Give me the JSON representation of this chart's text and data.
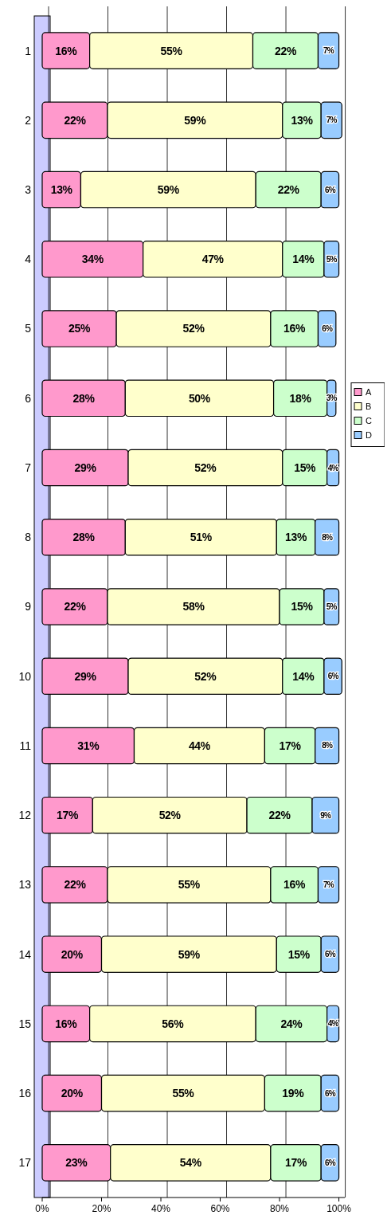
{
  "chart_data": {
    "type": "bar",
    "orientation": "horizontal",
    "stacked": true,
    "categories": [
      "1",
      "2",
      "3",
      "4",
      "5",
      "6",
      "7",
      "8",
      "9",
      "10",
      "11",
      "12",
      "13",
      "14",
      "15",
      "16",
      "17"
    ],
    "series": [
      {
        "name": "A",
        "color": "#ff99cc",
        "values": [
          16,
          22,
          13,
          34,
          25,
          28,
          29,
          28,
          22,
          29,
          31,
          17,
          22,
          20,
          16,
          20,
          23
        ],
        "value_labels": [
          "16%",
          "22%",
          "13%",
          "34%",
          "25%",
          "28%",
          "29%",
          "28%",
          "22%",
          "29%",
          "31%",
          "17%",
          "22%",
          "20%",
          "16%",
          "20%",
          "23%"
        ]
      },
      {
        "name": "B",
        "color": "#ffffcc",
        "values": [
          55,
          59,
          59,
          47,
          52,
          50,
          52,
          51,
          58,
          52,
          44,
          52,
          55,
          59,
          56,
          55,
          54
        ],
        "value_labels": [
          "55%",
          "59%",
          "59%",
          "47%",
          "52%",
          "50%",
          "52%",
          "51%",
          "58%",
          "52%",
          "44%",
          "52%",
          "55%",
          "59%",
          "56%",
          "55%",
          "54%"
        ]
      },
      {
        "name": "C",
        "color": "#ccffcc",
        "values": [
          22,
          13,
          22,
          14,
          16,
          18,
          15,
          13,
          15,
          14,
          17,
          22,
          16,
          15,
          24,
          19,
          17
        ],
        "value_labels": [
          "22%",
          "13%",
          "22%",
          "14%",
          "16%",
          "18%",
          "15%",
          "13%",
          "15%",
          "14%",
          "17%",
          "22%",
          "16%",
          "15%",
          "24%",
          "19%",
          "17%"
        ]
      },
      {
        "name": "D",
        "color": "#99ccff",
        "values": [
          7,
          7,
          6,
          5,
          6,
          3,
          4,
          8,
          5,
          6,
          8,
          9,
          7,
          6,
          4,
          6,
          6
        ],
        "value_labels": [
          "7%",
          "7%",
          "6%",
          "5%",
          "6%",
          "3%",
          "4%",
          "8%",
          "5%",
          "6%",
          "8%",
          "9%",
          "7%",
          "6%",
          "4%",
          "6%",
          "6%"
        ]
      }
    ],
    "xlim": [
      0,
      102
    ],
    "xticks": [
      {
        "value": 0,
        "label": "0%"
      },
      {
        "value": 20,
        "label": "20%"
      },
      {
        "value": 40,
        "label": "40%"
      },
      {
        "value": 60,
        "label": "60%"
      },
      {
        "value": 80,
        "label": "80%"
      },
      {
        "value": 100,
        "label": "100%"
      }
    ],
    "grid": "x",
    "legend": "right"
  }
}
